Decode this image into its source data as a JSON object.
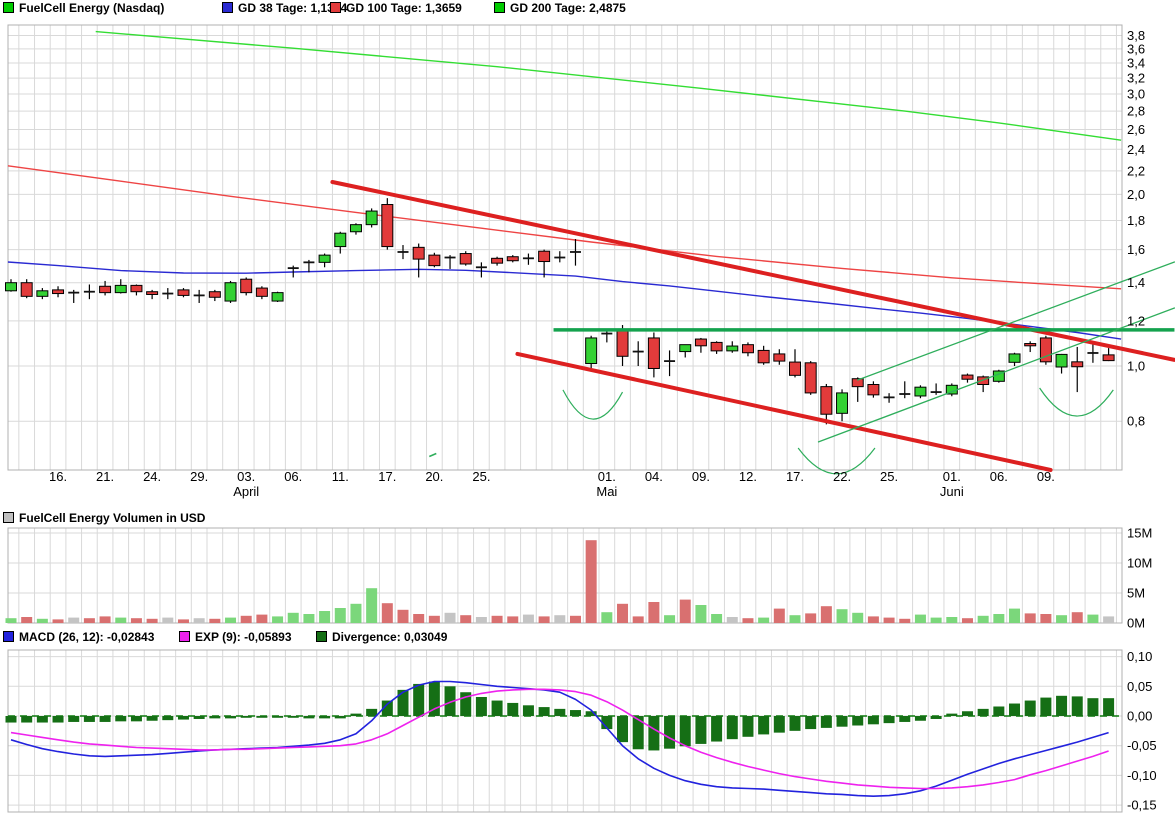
{
  "header": {
    "symbol_label": "FuelCell Energy (Nasdaq)",
    "gd38_label": "GD 38 Tage: 1,1314",
    "gd100_label": "GD 100 Tage: 1,3659",
    "gd200_label": "GD 200 Tage: 2,4875"
  },
  "volume_header": {
    "label": "FuelCell Energy Volumen in USD"
  },
  "macd_header": {
    "macd_label": "MACD (26, 12): -0,02843",
    "exp_label": "EXP (9): -0,05893",
    "divergence_label": "Divergence: 0,03049"
  },
  "colors": {
    "symbol_swatch": "#00cc00",
    "gd38": "#2a2ad2",
    "gd100": "#ee4444",
    "gd200": "#33dd33",
    "candle_up": "#33d133",
    "candle_down": "#e23b3b",
    "doji": "#111111",
    "vol_up": "#7bd77b",
    "vol_down": "#d97070",
    "vol_neutral": "#c4c4c4",
    "vol_swatch": "#c0c0c0",
    "macd_line": "#2222dd",
    "exp_line": "#ee22ee",
    "hist": "#156f15",
    "zero_line": "#0a7a0a",
    "trend_red": "#dd2020",
    "level_green": "#14a24e",
    "thin_green": "#2fae5c",
    "grid": "#d9d9d9",
    "border": "#b0b0b0",
    "text": "#000000"
  },
  "chart_data": [
    {
      "panel": "price",
      "type": "candlestick",
      "title": "FuelCell Energy (Nasdaq)",
      "y_scale": "log",
      "ylim": [
        0.655,
        3.95
      ],
      "yticks": [
        [
          3.8,
          "3,8"
        ],
        [
          3.6,
          "3,6"
        ],
        [
          3.4,
          "3,4"
        ],
        [
          3.2,
          "3,2"
        ],
        [
          3.0,
          "3,0"
        ],
        [
          2.8,
          "2,8"
        ],
        [
          2.6,
          "2,6"
        ],
        [
          2.4,
          "2,4"
        ],
        [
          2.2,
          "2,2"
        ],
        [
          2.0,
          "2,0"
        ],
        [
          1.8,
          "1,8"
        ],
        [
          1.6,
          "1,6"
        ],
        [
          1.4,
          "1,4"
        ],
        [
          1.2,
          "1,2"
        ],
        [
          1.0,
          "1,0"
        ],
        [
          0.8,
          "0,8"
        ]
      ],
      "xticks": [
        {
          "i": 3,
          "label": "16."
        },
        {
          "i": 6,
          "label": "21."
        },
        {
          "i": 9,
          "label": "24."
        },
        {
          "i": 12,
          "label": "29."
        },
        {
          "i": 15,
          "label": "03.",
          "month": "April"
        },
        {
          "i": 18,
          "label": "06."
        },
        {
          "i": 21,
          "label": "11."
        },
        {
          "i": 24,
          "label": "17."
        },
        {
          "i": 27,
          "label": "20."
        },
        {
          "i": 30,
          "label": "25."
        },
        {
          "i": 38,
          "label": "01.",
          "month": "Mai"
        },
        {
          "i": 41,
          "label": "04."
        },
        {
          "i": 44,
          "label": "09."
        },
        {
          "i": 47,
          "label": "12."
        },
        {
          "i": 50,
          "label": "17."
        },
        {
          "i": 53,
          "label": "22."
        },
        {
          "i": 56,
          "label": "25."
        },
        {
          "i": 60,
          "label": "01.",
          "month": "Juni"
        },
        {
          "i": 63,
          "label": "06."
        },
        {
          "i": 66,
          "label": "09."
        }
      ],
      "candles": [
        [
          1.355,
          1.42,
          1.35,
          1.4,
          "g"
        ],
        [
          1.4,
          1.42,
          1.315,
          1.325,
          "r"
        ],
        [
          1.325,
          1.37,
          1.31,
          1.355,
          "g"
        ],
        [
          1.36,
          1.38,
          1.32,
          1.34,
          "r"
        ],
        [
          1.345,
          1.36,
          1.29,
          1.345,
          "x"
        ],
        [
          1.35,
          1.39,
          1.31,
          1.35,
          "x"
        ],
        [
          1.38,
          1.41,
          1.33,
          1.345,
          "r"
        ],
        [
          1.345,
          1.42,
          1.34,
          1.385,
          "g"
        ],
        [
          1.385,
          1.39,
          1.33,
          1.35,
          "r"
        ],
        [
          1.35,
          1.36,
          1.31,
          1.335,
          "r"
        ],
        [
          1.34,
          1.37,
          1.31,
          1.34,
          "x"
        ],
        [
          1.36,
          1.37,
          1.32,
          1.33,
          "r"
        ],
        [
          1.33,
          1.36,
          1.29,
          1.33,
          "x"
        ],
        [
          1.35,
          1.36,
          1.3,
          1.32,
          "r"
        ],
        [
          1.3,
          1.41,
          1.29,
          1.4,
          "g"
        ],
        [
          1.42,
          1.43,
          1.33,
          1.345,
          "r"
        ],
        [
          1.37,
          1.38,
          1.31,
          1.325,
          "r"
        ],
        [
          1.3,
          1.35,
          1.295,
          1.345,
          "g"
        ],
        [
          1.485,
          1.5,
          1.43,
          1.485,
          "x"
        ],
        [
          1.52,
          1.535,
          1.46,
          1.52,
          "x"
        ],
        [
          1.52,
          1.575,
          1.49,
          1.565,
          "g"
        ],
        [
          1.62,
          1.72,
          1.575,
          1.71,
          "g"
        ],
        [
          1.72,
          1.78,
          1.7,
          1.77,
          "g"
        ],
        [
          1.77,
          1.89,
          1.75,
          1.87,
          "g"
        ],
        [
          1.92,
          1.97,
          1.6,
          1.62,
          "r"
        ],
        [
          1.585,
          1.63,
          1.54,
          1.585,
          "x"
        ],
        [
          1.615,
          1.64,
          1.43,
          1.54,
          "r"
        ],
        [
          1.565,
          1.58,
          1.49,
          1.5,
          "r"
        ],
        [
          1.55,
          1.565,
          1.48,
          1.55,
          "x"
        ],
        [
          1.575,
          1.59,
          1.5,
          1.51,
          "r"
        ],
        [
          1.49,
          1.52,
          1.43,
          1.49,
          "x"
        ],
        [
          1.545,
          1.555,
          1.5,
          1.515,
          "r"
        ],
        [
          1.555,
          1.565,
          1.52,
          1.53,
          "r"
        ],
        [
          1.545,
          1.575,
          1.505,
          1.545,
          "x"
        ],
        [
          1.59,
          1.6,
          1.43,
          1.525,
          "r"
        ],
        [
          1.55,
          1.59,
          1.52,
          1.55,
          "x"
        ],
        [
          1.585,
          1.67,
          1.5,
          1.585,
          "x"
        ],
        [
          1.01,
          1.13,
          0.985,
          1.12,
          "g"
        ],
        [
          1.13,
          1.16,
          1.1,
          1.14,
          "x"
        ],
        [
          1.16,
          1.18,
          1.0,
          1.04,
          "r"
        ],
        [
          1.06,
          1.105,
          1.0,
          1.06,
          "x"
        ],
        [
          1.12,
          1.145,
          0.955,
          0.99,
          "r"
        ],
        [
          1.02,
          1.065,
          0.96,
          1.02,
          "x"
        ],
        [
          1.06,
          1.09,
          1.035,
          1.09,
          "g"
        ],
        [
          1.115,
          1.12,
          1.055,
          1.085,
          "r"
        ],
        [
          1.1,
          1.105,
          1.05,
          1.063,
          "r"
        ],
        [
          1.063,
          1.105,
          1.055,
          1.084,
          "g"
        ],
        [
          1.09,
          1.1,
          1.04,
          1.055,
          "r"
        ],
        [
          1.065,
          1.085,
          1.005,
          1.013,
          "r"
        ],
        [
          1.05,
          1.07,
          1.005,
          1.02,
          "r"
        ],
        [
          1.016,
          1.07,
          0.955,
          0.963,
          "r"
        ],
        [
          1.013,
          1.02,
          0.89,
          0.897,
          "r"
        ],
        [
          0.92,
          0.93,
          0.79,
          0.823,
          "r"
        ],
        [
          0.826,
          0.91,
          0.8,
          0.897,
          "g"
        ],
        [
          0.95,
          0.955,
          0.865,
          0.92,
          "r"
        ],
        [
          0.928,
          0.94,
          0.88,
          0.89,
          "r"
        ],
        [
          0.881,
          0.896,
          0.862,
          0.881,
          "x"
        ],
        [
          0.893,
          0.94,
          0.878,
          0.893,
          "x"
        ],
        [
          0.886,
          0.925,
          0.878,
          0.918,
          "g"
        ],
        [
          0.9,
          0.932,
          0.89,
          0.9,
          "x"
        ],
        [
          0.893,
          0.932,
          0.885,
          0.925,
          "g"
        ],
        [
          0.964,
          0.97,
          0.935,
          0.948,
          "r"
        ],
        [
          0.957,
          0.962,
          0.9,
          0.928,
          "r"
        ],
        [
          0.94,
          0.985,
          0.935,
          0.98,
          "g"
        ],
        [
          1.015,
          1.055,
          1.0,
          1.05,
          "g"
        ],
        [
          1.095,
          1.105,
          1.058,
          1.085,
          "r"
        ],
        [
          1.12,
          1.13,
          1.005,
          1.017,
          "r"
        ],
        [
          0.996,
          1.05,
          0.97,
          1.048,
          "g"
        ],
        [
          1.017,
          1.08,
          0.9,
          0.997,
          "r"
        ],
        [
          1.054,
          1.093,
          1.013,
          1.054,
          "x"
        ],
        [
          1.046,
          1.075,
          1.02,
          1.022,
          "r"
        ]
      ],
      "gd38": [
        [
          -0.2,
          1.522
        ],
        [
          3,
          1.5
        ],
        [
          7,
          1.47
        ],
        [
          11,
          1.456
        ],
        [
          15,
          1.455
        ],
        [
          18,
          1.462
        ],
        [
          22,
          1.47
        ],
        [
          26,
          1.478
        ],
        [
          29,
          1.472
        ],
        [
          32,
          1.458
        ],
        [
          36,
          1.438
        ],
        [
          39,
          1.406
        ],
        [
          42,
          1.382
        ],
        [
          45,
          1.353
        ],
        [
          48,
          1.324
        ],
        [
          52,
          1.29
        ],
        [
          55,
          1.263
        ],
        [
          58,
          1.238
        ],
        [
          61,
          1.212
        ],
        [
          64,
          1.183
        ],
        [
          68,
          1.145
        ],
        [
          70.8,
          1.115
        ]
      ],
      "gd100": [
        [
          -0.2,
          2.245
        ],
        [
          7,
          2.11
        ],
        [
          14,
          1.985
        ],
        [
          22,
          1.86
        ],
        [
          30,
          1.745
        ],
        [
          37,
          1.65
        ],
        [
          45,
          1.557
        ],
        [
          53,
          1.483
        ],
        [
          60,
          1.428
        ],
        [
          65,
          1.398
        ],
        [
          70.8,
          1.366
        ]
      ],
      "gd200": [
        [
          5.4,
          3.86
        ],
        [
          18,
          3.61
        ],
        [
          31,
          3.35
        ],
        [
          44,
          3.07
        ],
        [
          57,
          2.8
        ],
        [
          63,
          2.67
        ],
        [
          70.8,
          2.49
        ]
      ],
      "annotations": {
        "resistance_level": {
          "value": 1.157,
          "i1": 34.6,
          "i2": 74.2
        },
        "down_trend_upper": [
          [
            20.5,
            2.103
          ],
          [
            74.2,
            1.025
          ]
        ],
        "down_trend_lower": [
          [
            32.3,
            1.05
          ],
          [
            66.3,
            0.657
          ]
        ],
        "up_channel_lower": [
          [
            51.5,
            0.736
          ],
          [
            74.2,
            1.264
          ]
        ],
        "up_channel_upper": [
          [
            54.0,
            0.945
          ],
          [
            74.2,
            1.522
          ]
        ],
        "arcs": [
          {
            "i1": 35.2,
            "v1": 0.908,
            "i2": 39.0,
            "v2": 0.9,
            "vdip": 0.807
          },
          {
            "i1": 50.2,
            "v1": 0.718,
            "i2": 55.1,
            "v2": 0.718,
            "vdip": 0.647
          },
          {
            "i1": 65.6,
            "v1": 0.915,
            "i2": 70.3,
            "v2": 0.908,
            "vdip": 0.817
          }
        ],
        "dash_mark": {
          "i": 26.9,
          "v": 0.698
        }
      }
    },
    {
      "panel": "volume",
      "type": "bar",
      "title": "FuelCell Energy Volumen in USD",
      "unit": "millions USD",
      "ylim": [
        0,
        16
      ],
      "yticks": [
        [
          15,
          "15M"
        ],
        [
          10,
          "10M"
        ],
        [
          5,
          "5M"
        ],
        [
          0,
          "0M"
        ]
      ],
      "values": [
        0.8,
        1.0,
        0.7,
        0.6,
        0.9,
        0.8,
        1.1,
        0.9,
        0.8,
        0.7,
        0.9,
        0.6,
        0.8,
        0.7,
        0.9,
        1.2,
        1.4,
        1.1,
        1.7,
        1.5,
        2.0,
        2.5,
        3.2,
        5.8,
        3.3,
        2.2,
        1.5,
        1.2,
        1.7,
        1.3,
        1.0,
        1.2,
        1.1,
        1.4,
        1.1,
        1.3,
        1.2,
        13.8,
        1.8,
        3.2,
        1.1,
        3.5,
        1.3,
        3.9,
        3.0,
        1.5,
        1.0,
        0.8,
        0.9,
        2.4,
        1.3,
        1.6,
        2.8,
        2.3,
        1.7,
        1.1,
        0.9,
        0.7,
        1.4,
        0.9,
        1.0,
        0.8,
        1.2,
        1.5,
        2.4,
        1.6,
        1.5,
        1.3,
        1.8,
        1.4,
        1.1
      ],
      "colors": "grgrxrrgrrxrxrgrrgggggggrrrrxrxrrxrxrrgrrrgrggxrgrgrrggrrrgggrgggrrgrgx"
    },
    {
      "panel": "macd",
      "type": "macd",
      "ylim": [
        -0.165,
        0.11
      ],
      "yticks": [
        [
          0.1,
          "0,10"
        ],
        [
          0.05,
          "0,05"
        ],
        [
          0.0,
          "0,00"
        ],
        [
          -0.05,
          "-0,05"
        ],
        [
          -0.1,
          "-0,10"
        ],
        [
          -0.15,
          "-0,15"
        ]
      ],
      "macd": [
        -0.04,
        -0.048,
        -0.055,
        -0.06,
        -0.064,
        -0.067,
        -0.068,
        -0.067,
        -0.066,
        -0.065,
        -0.063,
        -0.061,
        -0.059,
        -0.057,
        -0.056,
        -0.055,
        -0.054,
        -0.053,
        -0.051,
        -0.049,
        -0.046,
        -0.04,
        -0.03,
        -0.008,
        0.02,
        0.04,
        0.052,
        0.058,
        0.058,
        0.056,
        0.053,
        0.05,
        0.048,
        0.046,
        0.044,
        0.04,
        0.028,
        0.01,
        -0.02,
        -0.05,
        -0.072,
        -0.088,
        -0.1,
        -0.109,
        -0.115,
        -0.119,
        -0.121,
        -0.122,
        -0.123,
        -0.125,
        -0.127,
        -0.129,
        -0.131,
        -0.132,
        -0.134,
        -0.135,
        -0.134,
        -0.131,
        -0.126,
        -0.118,
        -0.108,
        -0.098,
        -0.089,
        -0.08,
        -0.072,
        -0.065,
        -0.058,
        -0.051,
        -0.044,
        -0.036,
        -0.028
      ],
      "signal": [
        -0.028,
        -0.032,
        -0.036,
        -0.04,
        -0.044,
        -0.047,
        -0.049,
        -0.051,
        -0.053,
        -0.054,
        -0.055,
        -0.056,
        -0.057,
        -0.057,
        -0.056,
        -0.056,
        -0.055,
        -0.054,
        -0.053,
        -0.052,
        -0.051,
        -0.05,
        -0.047,
        -0.04,
        -0.03,
        -0.016,
        -0.002,
        0.012,
        0.023,
        0.032,
        0.038,
        0.042,
        0.044,
        0.045,
        0.045,
        0.044,
        0.041,
        0.035,
        0.024,
        0.01,
        -0.006,
        -0.022,
        -0.037,
        -0.05,
        -0.061,
        -0.07,
        -0.078,
        -0.085,
        -0.091,
        -0.097,
        -0.102,
        -0.106,
        -0.11,
        -0.113,
        -0.116,
        -0.118,
        -0.12,
        -0.121,
        -0.122,
        -0.122,
        -0.121,
        -0.119,
        -0.116,
        -0.112,
        -0.107,
        -0.099,
        -0.092,
        -0.084,
        -0.076,
        -0.068,
        -0.059
      ],
      "hist": [
        -0.011,
        -0.011,
        -0.011,
        -0.011,
        -0.01,
        -0.01,
        -0.01,
        -0.009,
        -0.009,
        -0.008,
        -0.007,
        -0.006,
        -0.005,
        -0.004,
        -0.004,
        -0.003,
        -0.003,
        -0.003,
        -0.003,
        -0.004,
        -0.004,
        -0.004,
        0.004,
        0.012,
        0.026,
        0.044,
        0.054,
        0.058,
        0.05,
        0.04,
        0.032,
        0.026,
        0.022,
        0.018,
        0.015,
        0.012,
        0.01,
        0.008,
        -0.022,
        -0.044,
        -0.056,
        -0.058,
        -0.055,
        -0.051,
        -0.047,
        -0.043,
        -0.039,
        -0.035,
        -0.031,
        -0.028,
        -0.025,
        -0.022,
        -0.02,
        -0.018,
        -0.016,
        -0.014,
        -0.012,
        -0.01,
        -0.008,
        -0.005,
        0.004,
        0.008,
        0.012,
        0.016,
        0.021,
        0.026,
        0.031,
        0.034,
        0.033,
        0.03,
        0.03
      ]
    }
  ]
}
